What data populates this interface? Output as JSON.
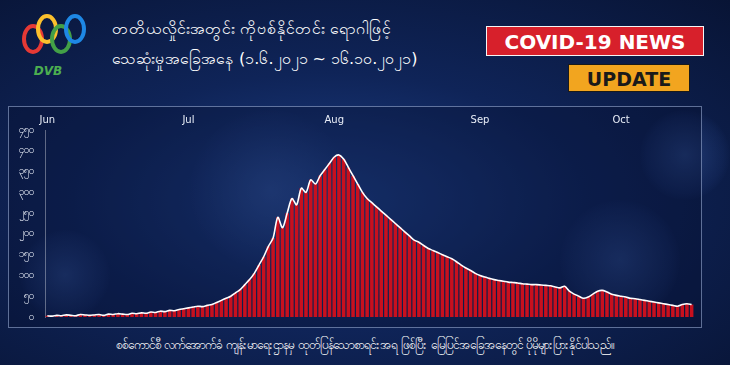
{
  "logo": "DVB",
  "badges": [
    "COVID-19 NEWS",
    "UPDATE"
  ],
  "caption": "စစ်ကောင်စီ လက်အောက်ခံ ကျန်းမာရေးဌာနမှ ထုတ်ပြန်သောစာရင်းအရ ဖြစ်ပြီး မြေပြင်အခြေအနေတွင် ပိုမိုများပြားနိုင်ပါသည်။",
  "chart_data": {
    "type": "bar",
    "title": [
      "တတိယလှိုင်းအတွင်း ကိုဗစ်နိုင်တင်း ရောဂါဖြင့်",
      "သေဆုံးမှုအခြေအနေ (၁.၆.၂၀၂၁ ~ ၁၆.၁၀.၂၀၂၁)"
    ],
    "categories": [
      "Jun",
      null,
      null,
      null,
      null,
      null,
      null,
      null,
      null,
      null,
      null,
      null,
      null,
      null,
      null,
      null,
      null,
      null,
      null,
      null,
      null,
      null,
      null,
      null,
      null,
      null,
      null,
      null,
      null,
      null,
      "Jul",
      null,
      null,
      null,
      null,
      null,
      null,
      null,
      null,
      null,
      null,
      null,
      null,
      null,
      null,
      null,
      null,
      null,
      null,
      null,
      null,
      null,
      null,
      null,
      null,
      null,
      null,
      null,
      null,
      null,
      null,
      "Aug",
      null,
      null,
      null,
      null,
      null,
      null,
      null,
      null,
      null,
      null,
      null,
      null,
      null,
      null,
      null,
      null,
      null,
      null,
      null,
      null,
      null,
      null,
      null,
      null,
      null,
      null,
      null,
      null,
      null,
      null,
      "Sep",
      null,
      null,
      null,
      null,
      null,
      null,
      null,
      null,
      null,
      null,
      null,
      null,
      null,
      null,
      null,
      null,
      null,
      null,
      null,
      null,
      null,
      null,
      null,
      null,
      null,
      null,
      null,
      null,
      null,
      "Oct",
      null,
      null,
      null,
      null,
      null,
      null,
      null,
      null,
      null,
      null,
      null,
      null,
      null,
      null,
      null
    ],
    "series": [
      {
        "type": "bar",
        "color": "#c8101e",
        "values": [
          3,
          2,
          4,
          3,
          5,
          4,
          3,
          6,
          5,
          4,
          5,
          6,
          4,
          7,
          6,
          8,
          7,
          6,
          9,
          8,
          10,
          9,
          12,
          11,
          14,
          13,
          16,
          15,
          18,
          20,
          22,
          24,
          26,
          25,
          28,
          30,
          35,
          40,
          45,
          50,
          58,
          66,
          78,
          90,
          105,
          125,
          145,
          170,
          190,
          240,
          215,
          250,
          285,
          270,
          310,
          300,
          330,
          320,
          340,
          355,
          370,
          385,
          390,
          380,
          360,
          340,
          320,
          300,
          285,
          275,
          265,
          255,
          245,
          235,
          225,
          215,
          205,
          195,
          185,
          180,
          172,
          165,
          160,
          155,
          150,
          145,
          140,
          133,
          125,
          118,
          112,
          105,
          100,
          96,
          93,
          90,
          88,
          86,
          84,
          83,
          82,
          80,
          79,
          78,
          78,
          77,
          76,
          75,
          72,
          70,
          74,
          62,
          55,
          50,
          45,
          48,
          55,
          62,
          64,
          60,
          55,
          52,
          50,
          48,
          45,
          44,
          42,
          40,
          38,
          36,
          34,
          32,
          30,
          28,
          26,
          30,
          32,
          30
        ]
      },
      {
        "type": "line",
        "color": "#ffffff",
        "values": [
          3,
          2,
          4,
          3,
          5,
          4,
          3,
          6,
          5,
          4,
          5,
          6,
          4,
          7,
          6,
          8,
          7,
          6,
          9,
          8,
          10,
          9,
          12,
          11,
          14,
          13,
          16,
          15,
          18,
          20,
          22,
          24,
          26,
          25,
          28,
          30,
          35,
          40,
          45,
          50,
          58,
          66,
          78,
          90,
          105,
          125,
          145,
          170,
          190,
          240,
          215,
          250,
          285,
          270,
          310,
          300,
          330,
          320,
          340,
          355,
          370,
          385,
          390,
          380,
          360,
          340,
          320,
          300,
          285,
          275,
          265,
          255,
          245,
          235,
          225,
          215,
          205,
          195,
          185,
          180,
          172,
          165,
          160,
          155,
          150,
          145,
          140,
          133,
          125,
          118,
          112,
          105,
          100,
          96,
          93,
          90,
          88,
          86,
          84,
          83,
          82,
          80,
          79,
          78,
          78,
          77,
          76,
          75,
          72,
          70,
          74,
          62,
          55,
          50,
          45,
          48,
          55,
          62,
          64,
          60,
          55,
          52,
          50,
          48,
          45,
          44,
          42,
          40,
          38,
          36,
          34,
          32,
          30,
          28,
          26,
          30,
          32,
          30
        ]
      }
    ],
    "ylim": [
      0,
      450
    ],
    "yticks": [
      {
        "value": 0,
        "label": "၀"
      },
      {
        "value": 50,
        "label": "၅၀"
      },
      {
        "value": 100,
        "label": "၁၀၀"
      },
      {
        "value": 150,
        "label": "၁၅၀"
      },
      {
        "value": 200,
        "label": "၂၀၀"
      },
      {
        "value": 250,
        "label": "၂၅၀"
      },
      {
        "value": 300,
        "label": "၃၀၀"
      },
      {
        "value": 350,
        "label": "၃၅၀"
      },
      {
        "value": 400,
        "label": "၄၀၀"
      },
      {
        "value": 450,
        "label": "၄၅၀"
      }
    ],
    "grid": false
  }
}
